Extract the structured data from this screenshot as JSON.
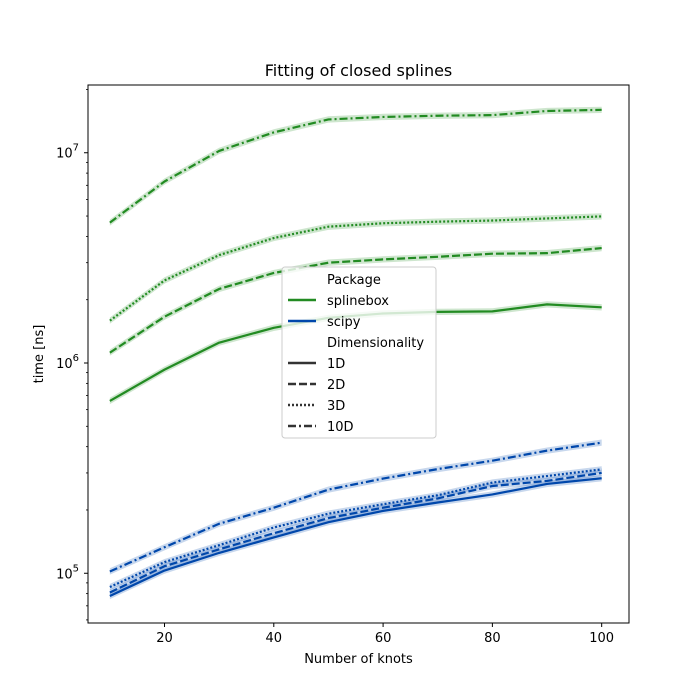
{
  "chart_data": {
    "type": "line",
    "title": "Fitting of closed splines",
    "xlabel": "Number of knots",
    "ylabel": "time [ns]",
    "xlim": [
      6,
      105
    ],
    "ylim": [
      58000,
      21000000
    ],
    "yscale": "log",
    "x_ticks": [
      20,
      40,
      60,
      80,
      100
    ],
    "y_ticks": [
      {
        "value": 100000,
        "base": "10",
        "exp": "5"
      },
      {
        "value": 1000000,
        "base": "10",
        "exp": "6"
      },
      {
        "value": 10000000,
        "base": "10",
        "exp": "7"
      }
    ],
    "grid": false,
    "legend": {
      "placement": "center",
      "package_title": "Package",
      "packages": [
        {
          "name": "splinebox",
          "color": "#228b22"
        },
        {
          "name": "scipy",
          "color": "#0047ab"
        }
      ],
      "dim_title": "Dimensionality",
      "dims": [
        {
          "name": "1D",
          "dash": "none"
        },
        {
          "name": "2D",
          "dash": "8,3"
        },
        {
          "name": "3D",
          "dash": "2,2"
        },
        {
          "name": "10D",
          "dash": "8,3,2,3"
        }
      ]
    },
    "x": [
      10,
      20,
      30,
      40,
      50,
      60,
      70,
      80,
      90,
      100
    ],
    "series": [
      {
        "package": "splinebox",
        "dim": "1D",
        "color": "#228b22",
        "dash": "none",
        "values": [
          660000,
          930000,
          1250000,
          1470000,
          1640000,
          1720000,
          1750000,
          1760000,
          1900000,
          1840000
        ]
      },
      {
        "package": "splinebox",
        "dim": "2D",
        "color": "#228b22",
        "dash": "8,3",
        "values": [
          1120000,
          1660000,
          2250000,
          2680000,
          3000000,
          3110000,
          3200000,
          3310000,
          3330000,
          3520000
        ]
      },
      {
        "package": "splinebox",
        "dim": "3D",
        "color": "#228b22",
        "dash": "2,2",
        "values": [
          1590000,
          2470000,
          3260000,
          3930000,
          4450000,
          4620000,
          4700000,
          4760000,
          4870000,
          4980000
        ]
      },
      {
        "package": "splinebox",
        "dim": "10D",
        "color": "#228b22",
        "dash": "8,3,2,3",
        "values": [
          4650000,
          7300000,
          10200000,
          12500000,
          14400000,
          14800000,
          15000000,
          15100000,
          15800000,
          16000000
        ]
      },
      {
        "package": "scipy",
        "dim": "1D",
        "color": "#0047ab",
        "dash": "none",
        "values": [
          78000,
          103000,
          125000,
          148000,
          175000,
          198000,
          217000,
          237000,
          266000,
          283000
        ]
      },
      {
        "package": "scipy",
        "dim": "2D",
        "color": "#0047ab",
        "dash": "8,3",
        "values": [
          81000,
          108000,
          130000,
          155000,
          183000,
          205000,
          227000,
          260000,
          275000,
          300000
        ]
      },
      {
        "package": "scipy",
        "dim": "3D",
        "color": "#0047ab",
        "dash": "2,2",
        "values": [
          86000,
          113000,
          136000,
          165000,
          192000,
          213000,
          235000,
          270000,
          290000,
          312000
        ]
      },
      {
        "package": "scipy",
        "dim": "10D",
        "color": "#0047ab",
        "dash": "8,3,2,3",
        "values": [
          102000,
          133000,
          172000,
          205000,
          250000,
          282000,
          313000,
          343000,
          383000,
          418000
        ]
      }
    ]
  }
}
